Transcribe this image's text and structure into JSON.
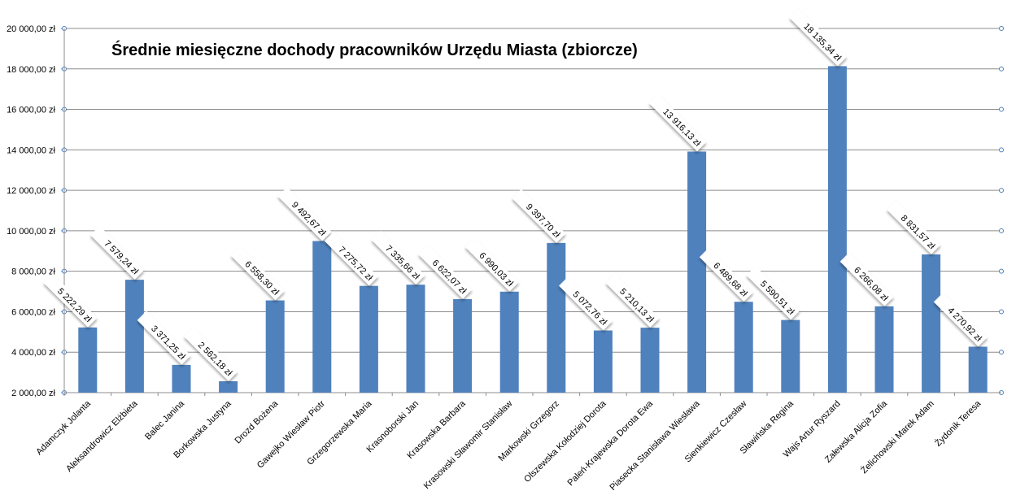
{
  "chart_data": {
    "type": "bar",
    "title": "Średnie miesięczne dochody pracowników Urzędu Miasta (zbiorcze)",
    "xlabel": "",
    "ylabel": "",
    "ylim": [
      2000,
      20000
    ],
    "ytick_step": 2000,
    "ytick_labels": [
      "2 000,00 zł",
      "4 000,00 zł",
      "6 000,00 zł",
      "8 000,00 zł",
      "10 000,00 zł",
      "12 000,00 zł",
      "14 000,00 zł",
      "16 000,00 zł",
      "18 000,00 zł",
      "20 000,00 zł"
    ],
    "grid": true,
    "legend": "none",
    "bar_color": "#4f81bd",
    "categories": [
      "Adamczyk Jolanta",
      "Aleksandrowicz Elżbieta",
      "Balec Janina",
      "Borkowska Justyna",
      "Drozd Bożena",
      "Gawejko Wiesław Piotr",
      "Grzegorzewska Maria",
      "Krasnoborski Jan",
      "Krasowska Barbara",
      "Krasowski Sławomir Stanisław",
      "Markowski Grzegorz",
      "Olszewska Kołodziej Dorota",
      "Paleń-Krajewska Dorota Ewa",
      "Piasecka Stanisława Wiesława",
      "Sienkiewicz Czesław",
      "Sławińska Regina",
      "Wajs Artur Ryszard",
      "Załewska Alicja Zofia",
      "Żelichowski Marek Adam",
      "Żydonik Teresa"
    ],
    "values": [
      5222.29,
      7579.24,
      3371.25,
      2562.18,
      6558.3,
      9492.67,
      7275.72,
      7335.66,
      6622.07,
      6990.03,
      9397.7,
      5072.76,
      5210.13,
      13916.13,
      6489.68,
      5590.51,
      18135.34,
      6266.08,
      8831.57,
      4270.92
    ],
    "value_labels": [
      "5 222,29 zł",
      "7 579,24 zł",
      "3 371,25 zł",
      "2 562,18 zł",
      "6 558,30 zł",
      "9 492,67 zł",
      "7 275,72 zł",
      "7 335,66 zł",
      "6 622,07 zł",
      "6 990,03 zł",
      "9 397,70 zł",
      "5 072,76 zł",
      "5 210,13 zł",
      "13 916,13 zł",
      "6 489,68 zł",
      "5 590,51 zł",
      "18 135,34 zł",
      "6 266,08 zł",
      "8 831,57 zł",
      "4 270,92 zł"
    ]
  }
}
